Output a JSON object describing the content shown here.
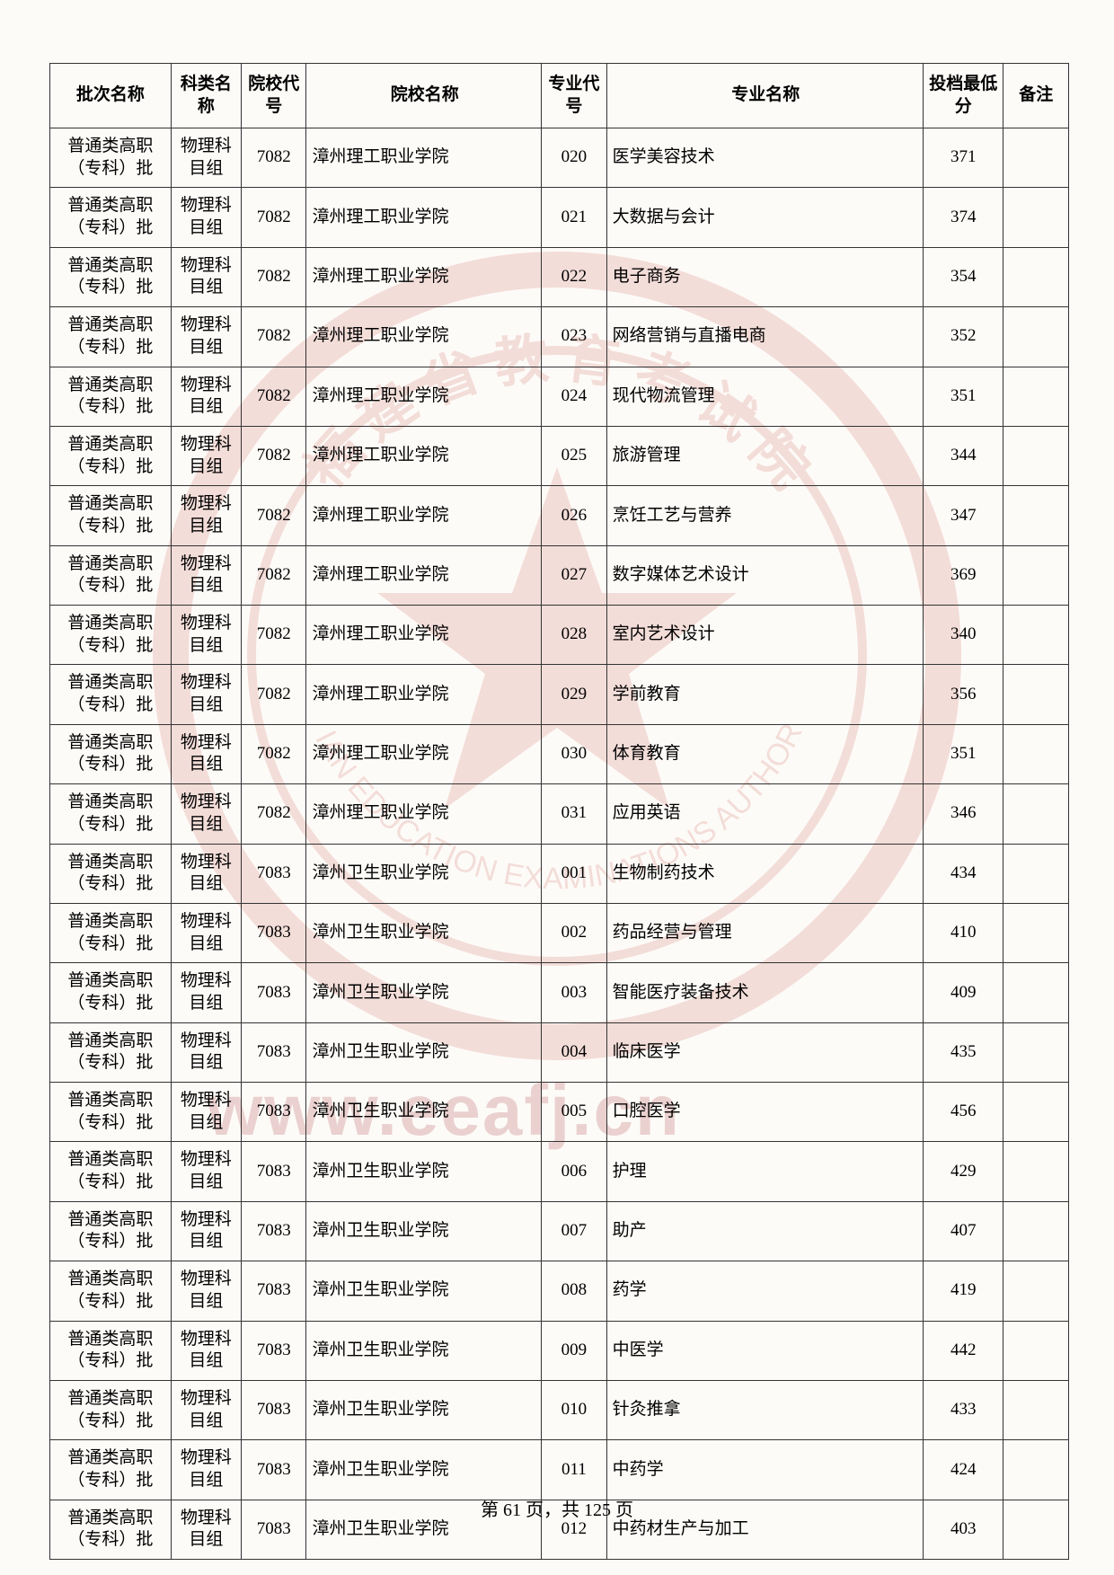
{
  "headers": {
    "batch": "批次名称",
    "category": "科类名称",
    "school_code": "院校代号",
    "school_name": "院校名称",
    "major_code": "专业代号",
    "major_name": "专业名称",
    "score": "投档最低分",
    "note": "备注"
  },
  "footer": {
    "text": "第 61 页，共 125 页"
  },
  "watermark_url": "www.eeafj.cn",
  "rows": [
    {
      "batch": "普通类高职（专科）批",
      "cat": "物理科目组",
      "scode": "7082",
      "sname": "漳州理工职业学院",
      "mcode": "020",
      "mname": "医学美容技术",
      "score": "371",
      "note": ""
    },
    {
      "batch": "普通类高职（专科）批",
      "cat": "物理科目组",
      "scode": "7082",
      "sname": "漳州理工职业学院",
      "mcode": "021",
      "mname": "大数据与会计",
      "score": "374",
      "note": ""
    },
    {
      "batch": "普通类高职（专科）批",
      "cat": "物理科目组",
      "scode": "7082",
      "sname": "漳州理工职业学院",
      "mcode": "022",
      "mname": "电子商务",
      "score": "354",
      "note": ""
    },
    {
      "batch": "普通类高职（专科）批",
      "cat": "物理科目组",
      "scode": "7082",
      "sname": "漳州理工职业学院",
      "mcode": "023",
      "mname": "网络营销与直播电商",
      "score": "352",
      "note": ""
    },
    {
      "batch": "普通类高职（专科）批",
      "cat": "物理科目组",
      "scode": "7082",
      "sname": "漳州理工职业学院",
      "mcode": "024",
      "mname": "现代物流管理",
      "score": "351",
      "note": ""
    },
    {
      "batch": "普通类高职（专科）批",
      "cat": "物理科目组",
      "scode": "7082",
      "sname": "漳州理工职业学院",
      "mcode": "025",
      "mname": "旅游管理",
      "score": "344",
      "note": ""
    },
    {
      "batch": "普通类高职（专科）批",
      "cat": "物理科目组",
      "scode": "7082",
      "sname": "漳州理工职业学院",
      "mcode": "026",
      "mname": "烹饪工艺与营养",
      "score": "347",
      "note": ""
    },
    {
      "batch": "普通类高职（专科）批",
      "cat": "物理科目组",
      "scode": "7082",
      "sname": "漳州理工职业学院",
      "mcode": "027",
      "mname": "数字媒体艺术设计",
      "score": "369",
      "note": ""
    },
    {
      "batch": "普通类高职（专科）批",
      "cat": "物理科目组",
      "scode": "7082",
      "sname": "漳州理工职业学院",
      "mcode": "028",
      "mname": "室内艺术设计",
      "score": "340",
      "note": ""
    },
    {
      "batch": "普通类高职（专科）批",
      "cat": "物理科目组",
      "scode": "7082",
      "sname": "漳州理工职业学院",
      "mcode": "029",
      "mname": "学前教育",
      "score": "356",
      "note": ""
    },
    {
      "batch": "普通类高职（专科）批",
      "cat": "物理科目组",
      "scode": "7082",
      "sname": "漳州理工职业学院",
      "mcode": "030",
      "mname": "体育教育",
      "score": "351",
      "note": ""
    },
    {
      "batch": "普通类高职（专科）批",
      "cat": "物理科目组",
      "scode": "7082",
      "sname": "漳州理工职业学院",
      "mcode": "031",
      "mname": "应用英语",
      "score": "346",
      "note": ""
    },
    {
      "batch": "普通类高职（专科）批",
      "cat": "物理科目组",
      "scode": "7083",
      "sname": "漳州卫生职业学院",
      "mcode": "001",
      "mname": "生物制药技术",
      "score": "434",
      "note": ""
    },
    {
      "batch": "普通类高职（专科）批",
      "cat": "物理科目组",
      "scode": "7083",
      "sname": "漳州卫生职业学院",
      "mcode": "002",
      "mname": "药品经营与管理",
      "score": "410",
      "note": ""
    },
    {
      "batch": "普通类高职（专科）批",
      "cat": "物理科目组",
      "scode": "7083",
      "sname": "漳州卫生职业学院",
      "mcode": "003",
      "mname": "智能医疗装备技术",
      "score": "409",
      "note": ""
    },
    {
      "batch": "普通类高职（专科）批",
      "cat": "物理科目组",
      "scode": "7083",
      "sname": "漳州卫生职业学院",
      "mcode": "004",
      "mname": "临床医学",
      "score": "435",
      "note": ""
    },
    {
      "batch": "普通类高职（专科）批",
      "cat": "物理科目组",
      "scode": "7083",
      "sname": "漳州卫生职业学院",
      "mcode": "005",
      "mname": "口腔医学",
      "score": "456",
      "note": ""
    },
    {
      "batch": "普通类高职（专科）批",
      "cat": "物理科目组",
      "scode": "7083",
      "sname": "漳州卫生职业学院",
      "mcode": "006",
      "mname": "护理",
      "score": "429",
      "note": ""
    },
    {
      "batch": "普通类高职（专科）批",
      "cat": "物理科目组",
      "scode": "7083",
      "sname": "漳州卫生职业学院",
      "mcode": "007",
      "mname": "助产",
      "score": "407",
      "note": ""
    },
    {
      "batch": "普通类高职（专科）批",
      "cat": "物理科目组",
      "scode": "7083",
      "sname": "漳州卫生职业学院",
      "mcode": "008",
      "mname": "药学",
      "score": "419",
      "note": ""
    },
    {
      "batch": "普通类高职（专科）批",
      "cat": "物理科目组",
      "scode": "7083",
      "sname": "漳州卫生职业学院",
      "mcode": "009",
      "mname": "中医学",
      "score": "442",
      "note": ""
    },
    {
      "batch": "普通类高职（专科）批",
      "cat": "物理科目组",
      "scode": "7083",
      "sname": "漳州卫生职业学院",
      "mcode": "010",
      "mname": "针灸推拿",
      "score": "433",
      "note": ""
    },
    {
      "batch": "普通类高职（专科）批",
      "cat": "物理科目组",
      "scode": "7083",
      "sname": "漳州卫生职业学院",
      "mcode": "011",
      "mname": "中药学",
      "score": "424",
      "note": ""
    },
    {
      "batch": "普通类高职（专科）批",
      "cat": "物理科目组",
      "scode": "7083",
      "sname": "漳州卫生职业学院",
      "mcode": "012",
      "mname": "中药材生产与加工",
      "score": "403",
      "note": ""
    }
  ]
}
